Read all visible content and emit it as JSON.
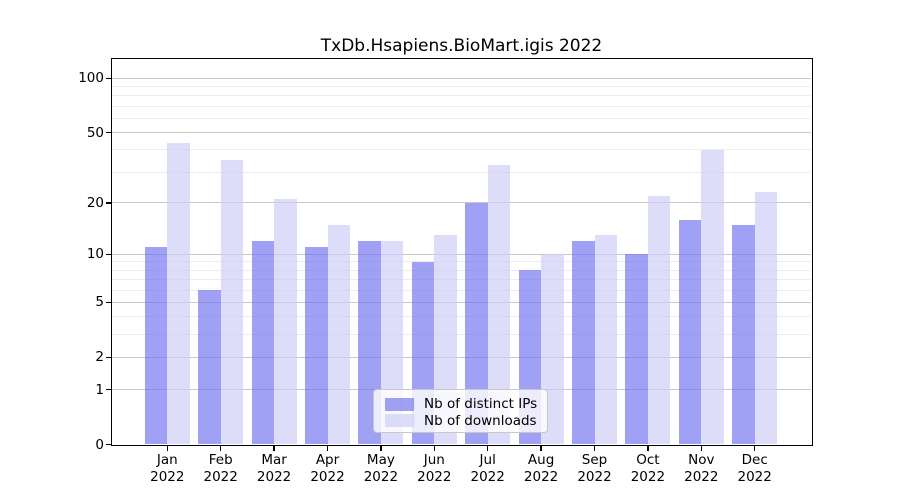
{
  "title": "TxDb.Hsapiens.BioMart.igis 2022",
  "chart_data": {
    "type": "bar",
    "title": "TxDb.Hsapiens.BioMart.igis 2022",
    "categories": [
      "Jan",
      "Feb",
      "Mar",
      "Apr",
      "May",
      "Jun",
      "Jul",
      "Aug",
      "Sep",
      "Oct",
      "Nov",
      "Dec"
    ],
    "x_year_label": "2022",
    "series": [
      {
        "name": "Nb of distinct IPs",
        "color": "rgba(115,115,240,0.68)",
        "values": [
          11,
          6,
          12,
          11,
          12,
          9,
          20,
          8,
          12,
          10,
          16,
          15
        ]
      },
      {
        "name": "Nb of downloads",
        "color": "rgba(205,205,247,0.68)",
        "values": [
          44,
          35,
          21,
          15,
          12,
          13,
          33,
          10,
          13,
          22,
          40,
          23
        ]
      }
    ],
    "xlabel": "",
    "ylabel": "",
    "y_scale": "log1p",
    "y_ticks": [
      100,
      50,
      20,
      10,
      5,
      2,
      1,
      0
    ],
    "y_minor_ticks": [
      3,
      4,
      6,
      7,
      8,
      9,
      30,
      40,
      60,
      70,
      80,
      90
    ],
    "ylim": [
      0,
      128
    ],
    "grid": true,
    "legend_position": "bottom-center"
  },
  "colors": {
    "major_gridline": "#c8c8c8",
    "minor_gridline": "#ececec",
    "axis": "#000000",
    "background": "#ffffff",
    "legend_border": "#c8c8c8"
  }
}
